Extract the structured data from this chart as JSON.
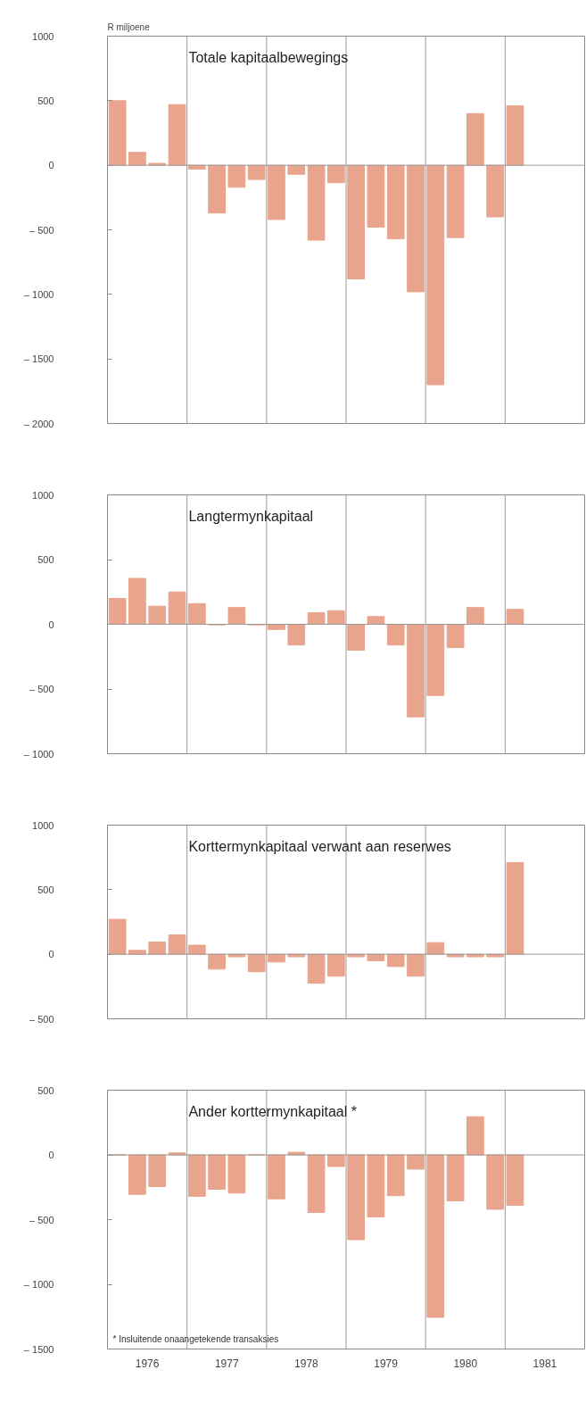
{
  "chart_data": [
    {
      "type": "bar",
      "title": "Totale kapitaalbewegings",
      "ylabel": "R miljoene",
      "color": "#e8a48c",
      "tick_labels": "y",
      "x": [
        1976.125,
        1976.375,
        1976.625,
        1976.875,
        1977.125,
        1977.375,
        1977.625,
        1977.875,
        1978.125,
        1978.375,
        1978.625,
        1978.875,
        1979.125,
        1979.375,
        1979.625,
        1979.875,
        1980.125,
        1980.375,
        1980.625,
        1980.875,
        1981.125
      ],
      "values": [
        500,
        100,
        15,
        470,
        -30,
        -370,
        -170,
        -110,
        -420,
        -70,
        -580,
        -135,
        -880,
        -480,
        -570,
        -980,
        -1700,
        -560,
        400,
        -400,
        460
      ],
      "xlim": [
        1976,
        1982
      ],
      "ylim": [
        -2000,
        1000
      ],
      "yticks": [
        1000,
        500,
        0,
        {
          "value": -500,
          "label": "– 500"
        },
        {
          "value": -1000,
          "label": "– 1000"
        },
        {
          "value": -1500,
          "label": "– 1500"
        },
        {
          "value": -2000,
          "label": "– 2000"
        }
      ],
      "ref_lines": [
        {
          "axis": "y",
          "value": 0,
          "color": "#999999"
        },
        {
          "axis": "x",
          "value": 1977,
          "color": "#999999"
        },
        {
          "axis": "x",
          "value": 1978,
          "color": "#999999"
        },
        {
          "axis": "x",
          "value": 1979,
          "color": "#999999"
        },
        {
          "axis": "x",
          "value": 1980,
          "color": "#999999"
        },
        {
          "axis": "x",
          "value": 1981,
          "color": "#999999"
        }
      ]
    },
    {
      "type": "bar",
      "title": "Langtermynkapitaal",
      "color": "#e8a48c",
      "tick_labels": "y",
      "x": [
        1976.125,
        1976.375,
        1976.625,
        1976.875,
        1977.125,
        1977.375,
        1977.625,
        1977.875,
        1978.125,
        1978.375,
        1978.625,
        1978.875,
        1979.125,
        1979.375,
        1979.625,
        1979.875,
        1980.125,
        1980.375,
        1980.625,
        1980.875,
        1981.125
      ],
      "values": [
        200,
        355,
        140,
        250,
        160,
        -5,
        130,
        -5,
        -40,
        -160,
        90,
        105,
        -200,
        60,
        -160,
        -715,
        -550,
        -180,
        130,
        0,
        115
      ],
      "xlim": [
        1976,
        1982
      ],
      "ylim": [
        -1000,
        1000
      ],
      "yticks": [
        1000,
        500,
        0,
        {
          "value": -500,
          "label": "– 500"
        },
        {
          "value": -1000,
          "label": "– 1000"
        }
      ],
      "ref_lines": [
        {
          "axis": "y",
          "value": 0,
          "color": "#999999"
        },
        {
          "axis": "x",
          "value": 1977,
          "color": "#999999"
        },
        {
          "axis": "x",
          "value": 1978,
          "color": "#999999"
        },
        {
          "axis": "x",
          "value": 1979,
          "color": "#999999"
        },
        {
          "axis": "x",
          "value": 1980,
          "color": "#999999"
        },
        {
          "axis": "x",
          "value": 1981,
          "color": "#999999"
        }
      ]
    },
    {
      "type": "bar",
      "title": "Korttermynkapitaal verwant aan reserwes",
      "color": "#e8a48c",
      "tick_labels": "y",
      "x": [
        1976.125,
        1976.375,
        1976.625,
        1976.875,
        1977.125,
        1977.375,
        1977.625,
        1977.875,
        1978.125,
        1978.375,
        1978.625,
        1978.875,
        1979.125,
        1979.375,
        1979.625,
        1979.875,
        1980.125,
        1980.375,
        1980.625,
        1980.875,
        1981.125
      ],
      "values": [
        270,
        30,
        95,
        150,
        70,
        -115,
        -20,
        -135,
        -60,
        -20,
        -225,
        -170,
        -20,
        -50,
        -95,
        -170,
        90,
        -20,
        -20,
        -20,
        710
      ],
      "xlim": [
        1976,
        1982
      ],
      "ylim": [
        -500,
        1000
      ],
      "yticks": [
        1000,
        500,
        0,
        {
          "value": -500,
          "label": "– 500"
        }
      ],
      "ref_lines": [
        {
          "axis": "y",
          "value": 0,
          "color": "#999999"
        },
        {
          "axis": "x",
          "value": 1977,
          "color": "#999999"
        },
        {
          "axis": "x",
          "value": 1978,
          "color": "#999999"
        },
        {
          "axis": "x",
          "value": 1979,
          "color": "#999999"
        },
        {
          "axis": "x",
          "value": 1980,
          "color": "#999999"
        },
        {
          "axis": "x",
          "value": 1981,
          "color": "#999999"
        }
      ]
    },
    {
      "type": "bar",
      "title": "Ander korttermynkapitaal *",
      "color": "#e8a48c",
      "annotations": [
        "* Insluitende onaangetekende transaksies"
      ],
      "x": [
        1976.125,
        1976.375,
        1976.625,
        1976.875,
        1977.125,
        1977.375,
        1977.625,
        1977.875,
        1978.125,
        1978.375,
        1978.625,
        1978.875,
        1979.125,
        1979.375,
        1979.625,
        1979.875,
        1980.125,
        1980.375,
        1980.625,
        1980.875,
        1981.125
      ],
      "values": [
        0,
        -305,
        -245,
        15,
        -320,
        -265,
        -295,
        0,
        -340,
        20,
        -445,
        -90,
        -655,
        -480,
        -315,
        -110,
        -1255,
        -355,
        295,
        -420,
        -390
      ],
      "xlim": [
        1976,
        1982
      ],
      "ylim": [
        -1500,
        500
      ],
      "xticks": [
        {
          "value": 1976.5,
          "label": "1976"
        },
        {
          "value": 1977.5,
          "label": "1977"
        },
        {
          "value": 1978.5,
          "label": "1978"
        },
        {
          "value": 1979.5,
          "label": "1979"
        },
        {
          "value": 1980.5,
          "label": "1980"
        },
        {
          "value": 1981.5,
          "label": "1981"
        }
      ],
      "yticks": [
        500,
        0,
        {
          "value": -500,
          "label": "– 500"
        },
        {
          "value": -1000,
          "label": "– 1000"
        },
        {
          "value": -1500,
          "label": "– 1500"
        }
      ],
      "ref_lines": [
        {
          "axis": "y",
          "value": 0,
          "color": "#999999"
        },
        {
          "axis": "x",
          "value": 1977,
          "color": "#999999"
        },
        {
          "axis": "x",
          "value": 1978,
          "color": "#999999"
        },
        {
          "axis": "x",
          "value": 1979,
          "color": "#999999"
        },
        {
          "axis": "x",
          "value": 1980,
          "color": "#999999"
        },
        {
          "axis": "x",
          "value": 1981,
          "color": "#999999"
        }
      ]
    }
  ]
}
